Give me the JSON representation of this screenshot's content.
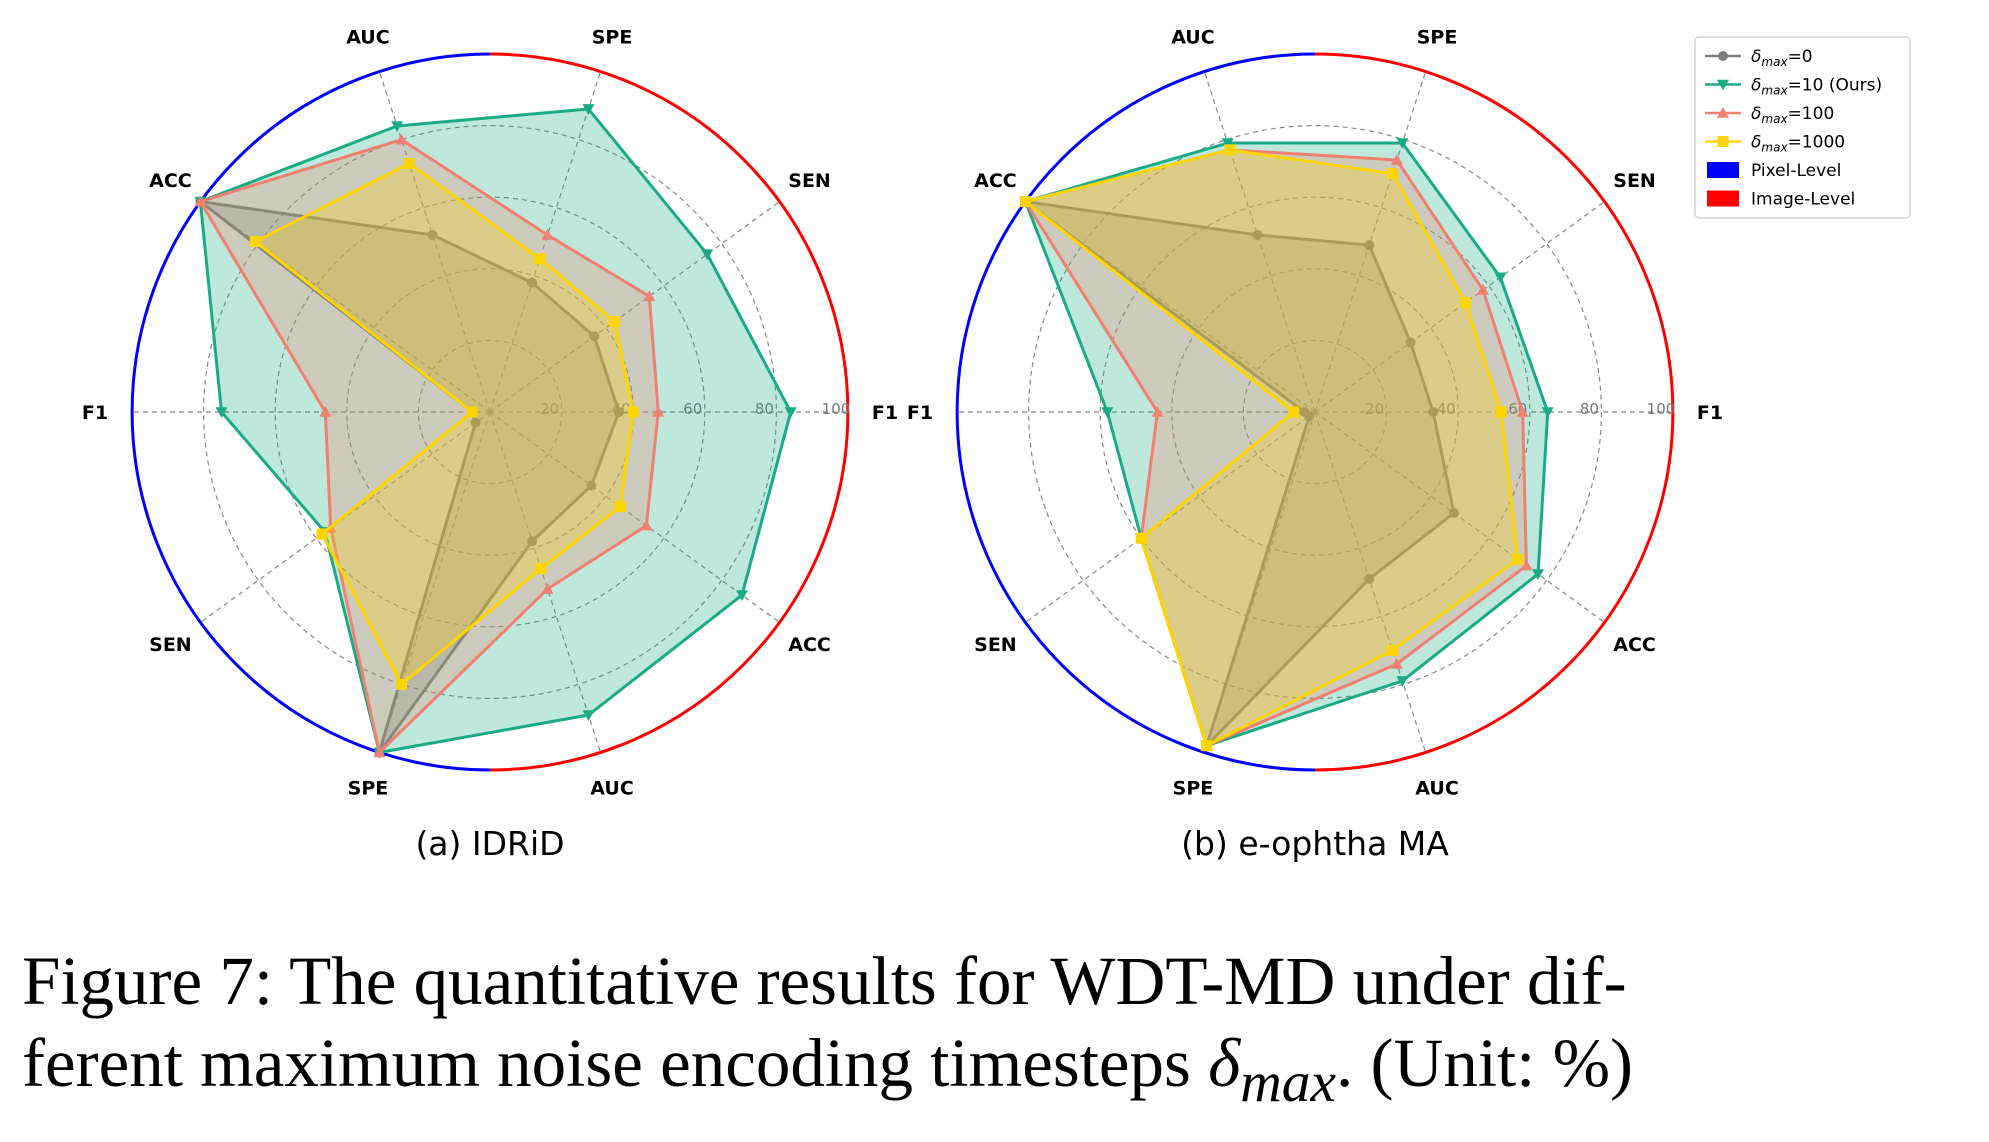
{
  "chart_data": [
    {
      "type": "radar",
      "subtitle": "(a) IDRiD",
      "axes": [
        "AUC",
        "ACC",
        "F1",
        "SEN",
        "SPE",
        "AUC",
        "ACC",
        "F1",
        "SEN",
        "SPE"
      ],
      "axis_group_levels": [
        "Pixel-Level",
        "Pixel-Level",
        "Pixel-Level",
        "Pixel-Level",
        "Pixel-Level",
        "Image-Level",
        "Image-Level",
        "Image-Level",
        "Image-Level",
        "Image-Level"
      ],
      "rlim": [
        0,
        100
      ],
      "rticks": [
        20,
        40,
        60,
        80,
        100
      ],
      "grid": true,
      "series": [
        {
          "name": "δmax=0",
          "color": "#7f7f7f",
          "marker": "circle",
          "values": [
            52,
            100,
            5,
            5,
            100,
            38,
            35,
            36,
            36,
            38
          ]
        },
        {
          "name": "δmax=10 (Ours)",
          "color": "#1aab86",
          "marker": "triangle-down",
          "values": [
            84,
            100,
            75,
            57,
            100,
            89,
            87,
            84,
            75,
            89
          ]
        },
        {
          "name": "δmax=100",
          "color": "#f08070",
          "marker": "triangle-up",
          "values": [
            80,
            100,
            46,
            55,
            100,
            52,
            54,
            47,
            55,
            52
          ]
        },
        {
          "name": "δmax=1000",
          "color": "#ffd500",
          "marker": "square",
          "values": [
            73,
            81,
            5,
            58,
            80,
            46,
            45,
            40,
            43,
            45
          ]
        }
      ]
    },
    {
      "type": "radar",
      "subtitle": "(b) e-ophtha MA",
      "axes": [
        "AUC",
        "ACC",
        "F1",
        "SEN",
        "SPE",
        "AUC",
        "ACC",
        "F1",
        "SEN",
        "SPE"
      ],
      "axis_group_levels": [
        "Pixel-Level",
        "Pixel-Level",
        "Pixel-Level",
        "Pixel-Level",
        "Pixel-Level",
        "Image-Level",
        "Image-Level",
        "Image-Level",
        "Image-Level",
        "Image-Level"
      ],
      "rlim": [
        0,
        100
      ],
      "rticks": [
        20,
        40,
        60,
        80,
        100
      ],
      "grid": true,
      "series": [
        {
          "name": "δmax=0",
          "color": "#7f7f7f",
          "marker": "circle",
          "values": [
            52,
            100,
            3,
            2,
            98,
            49,
            48,
            33,
            33,
            49
          ]
        },
        {
          "name": "δmax=10 (Ours)",
          "color": "#1aab86",
          "marker": "triangle-down",
          "values": [
            79,
            100,
            58,
            60,
            98,
            79,
            77,
            65,
            64,
            79
          ]
        },
        {
          "name": "δmax=100",
          "color": "#f08070",
          "marker": "triangle-up",
          "values": [
            77,
            100,
            44,
            60,
            98,
            74,
            73,
            58,
            58,
            74
          ]
        },
        {
          "name": "δmax=1000",
          "color": "#ffd500",
          "marker": "square",
          "values": [
            77,
            100,
            6,
            60,
            98,
            70,
            70,
            52,
            52,
            70
          ]
        }
      ]
    }
  ],
  "legend": {
    "position": "top-right",
    "items": [
      {
        "prefix": "δ",
        "sub": "max",
        "suffix": "=0",
        "color": "#7f7f7f",
        "marker": "circle"
      },
      {
        "prefix": "δ",
        "sub": "max",
        "suffix": "=10 (Ours)",
        "color": "#1aab86",
        "marker": "triangle-down"
      },
      {
        "prefix": "δ",
        "sub": "max",
        "suffix": "=100",
        "color": "#f08070",
        "marker": "triangle-up"
      },
      {
        "prefix": "δ",
        "sub": "max",
        "suffix": "=1000",
        "color": "#ffd500",
        "marker": "square"
      },
      {
        "text": "Pixel-Level",
        "color": "#0000ff",
        "marker": "patch"
      },
      {
        "text": "Image-Level",
        "color": "#ff0000",
        "marker": "patch"
      }
    ]
  },
  "caption": {
    "part1": "Figure 7: The quantitative results for WDT-MD under dif-",
    "part2": "ferent maximum noise encoding timesteps ",
    "symbol": "δ",
    "symbol_sub": "max",
    "part3": ". (Unit: %)"
  }
}
